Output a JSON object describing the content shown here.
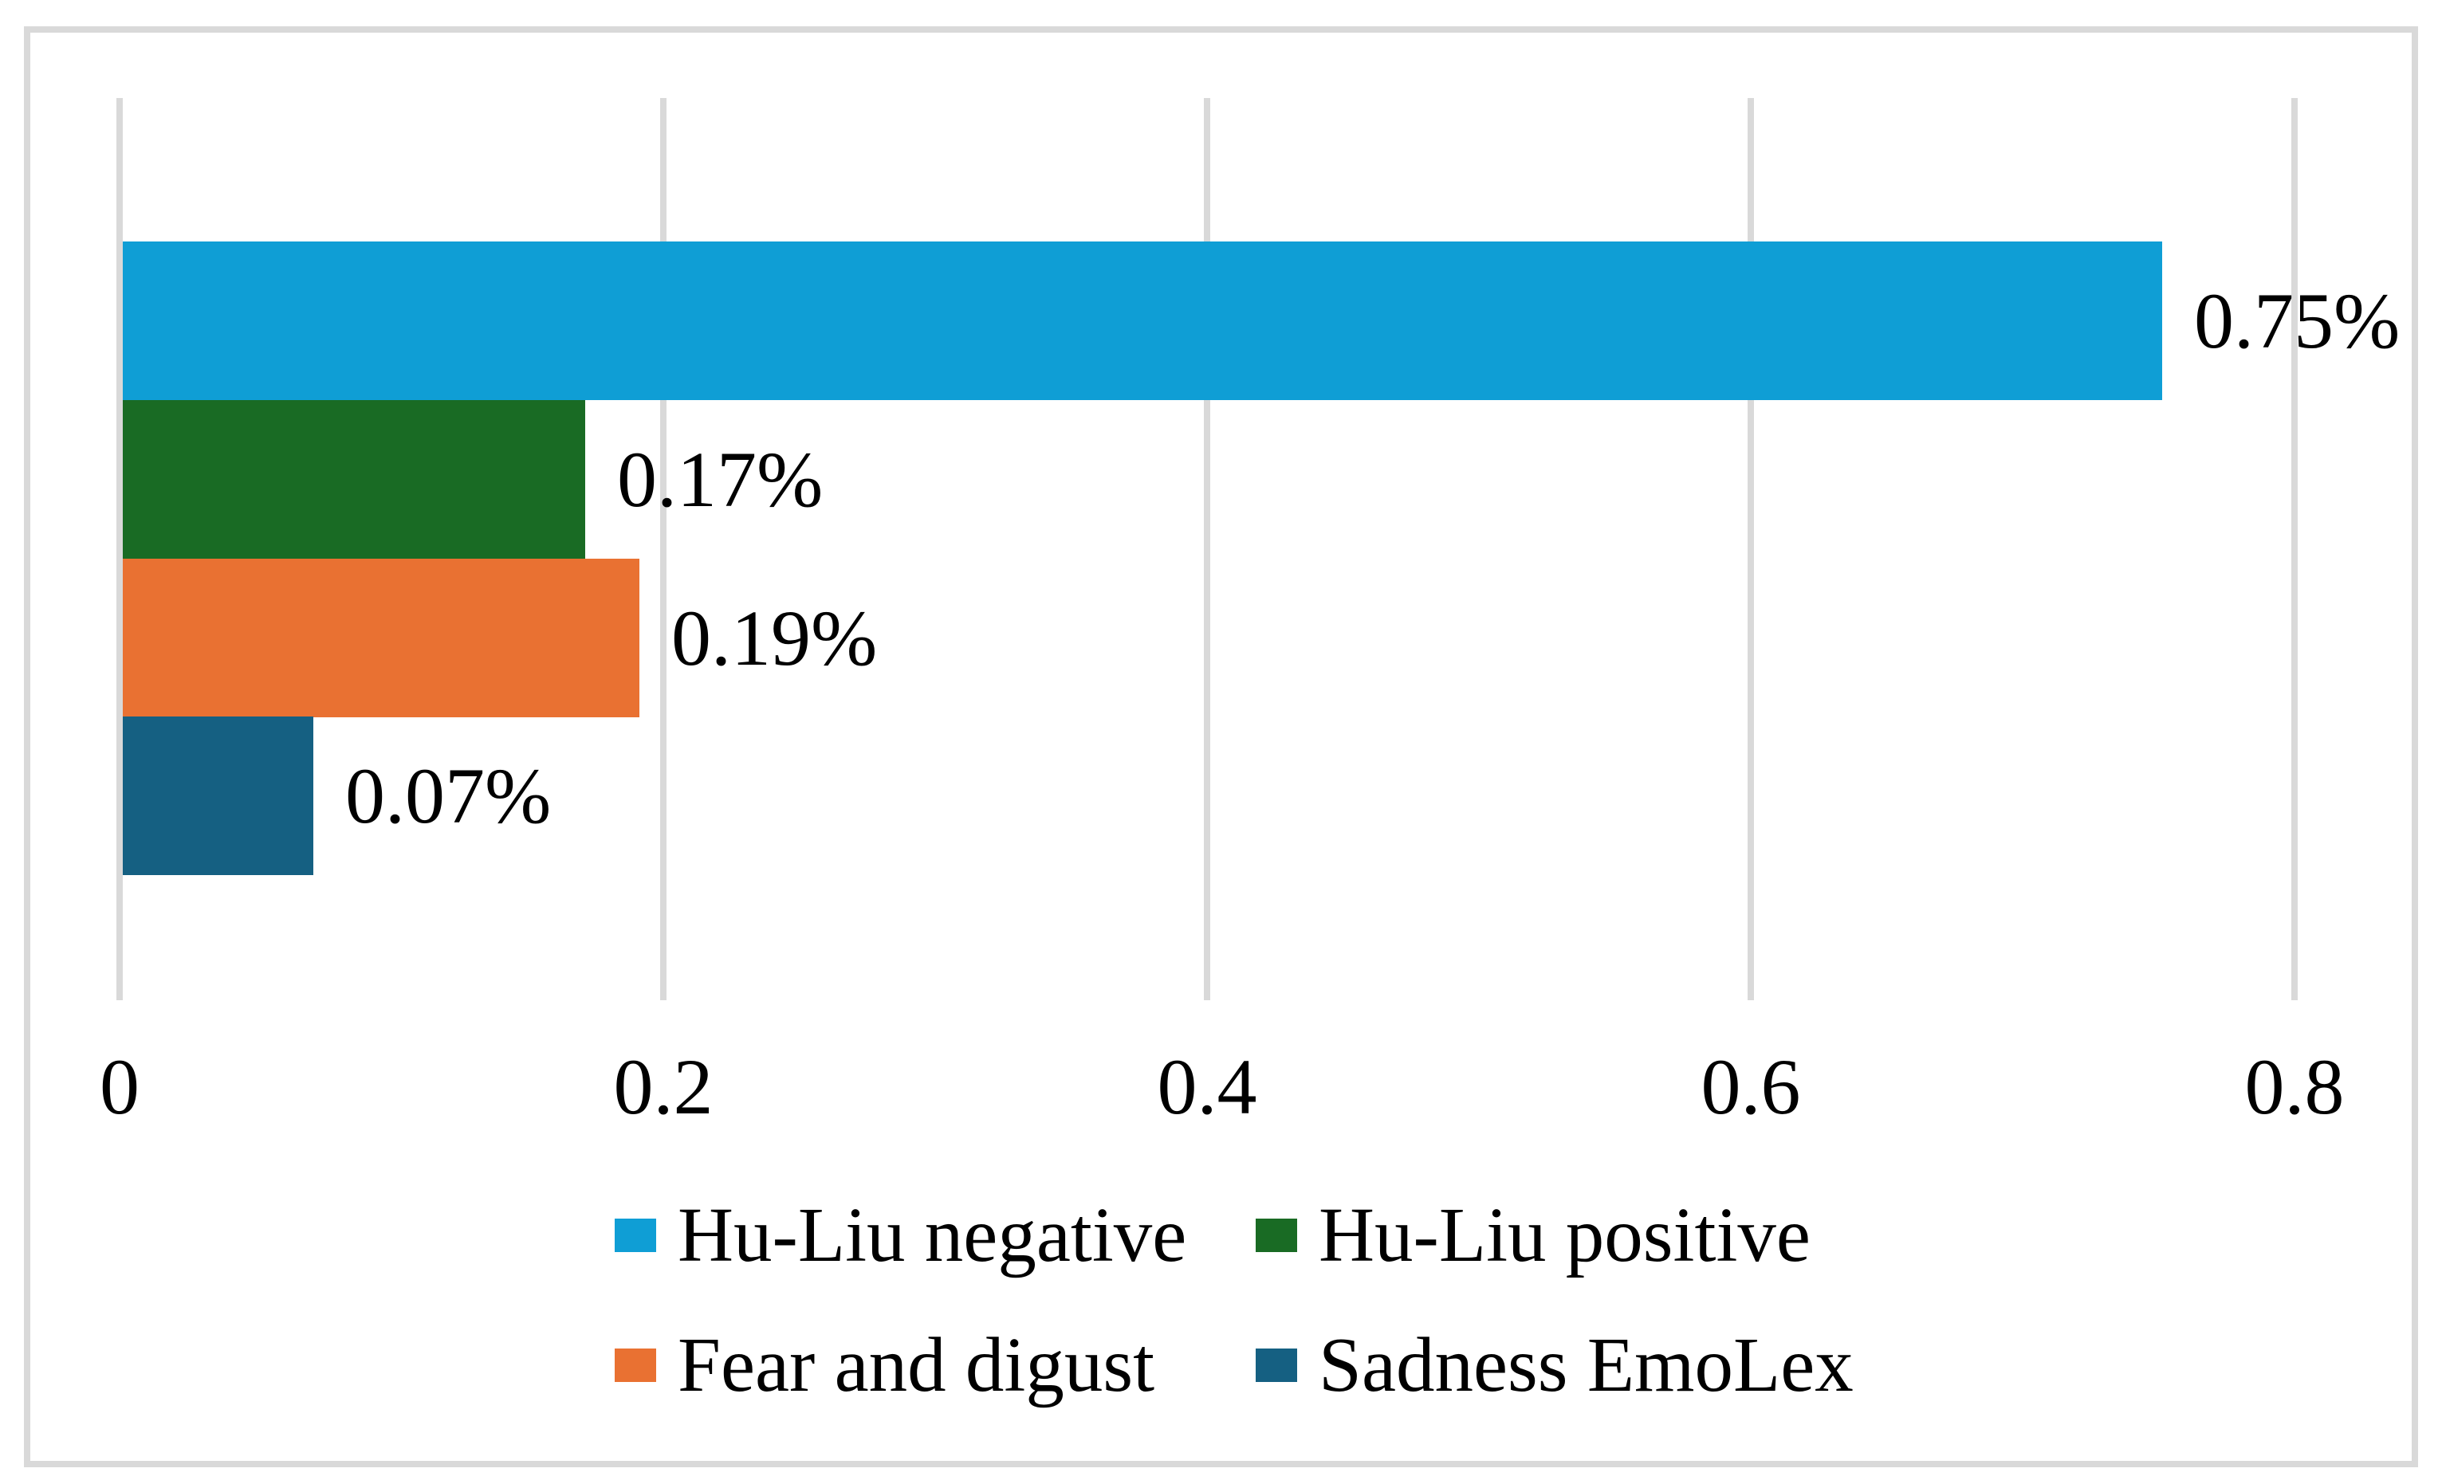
{
  "chart_data": {
    "type": "bar",
    "orientation": "horizontal",
    "title": "",
    "xlabel": "",
    "ylabel": "",
    "categories": [
      "Hu-Liu negative",
      "Hu-Liu positive",
      "Fear and digust",
      "Sadness EmoLex"
    ],
    "values": [
      0.75,
      0.17,
      0.19,
      0.07
    ],
    "value_labels": [
      "0.75%",
      "0.17%",
      "0.19%",
      "0.07%"
    ],
    "colors": [
      "#0F9ED5",
      "#196B24",
      "#E97132",
      "#156082"
    ],
    "x_ticks": [
      "0",
      "0.2",
      "0.4",
      "0.6",
      "0.8"
    ],
    "x_tick_values": [
      0,
      0.2,
      0.4,
      0.6,
      0.8
    ],
    "xlim": [
      0,
      0.8
    ],
    "grid": "vertical",
    "gridline_color": "#D9D9D9",
    "frame_border_color": "#D9D9D9",
    "background_color": "#FFFFFF",
    "text_color": "#000000",
    "legend_position": "bottom",
    "legend_rows": 2
  }
}
